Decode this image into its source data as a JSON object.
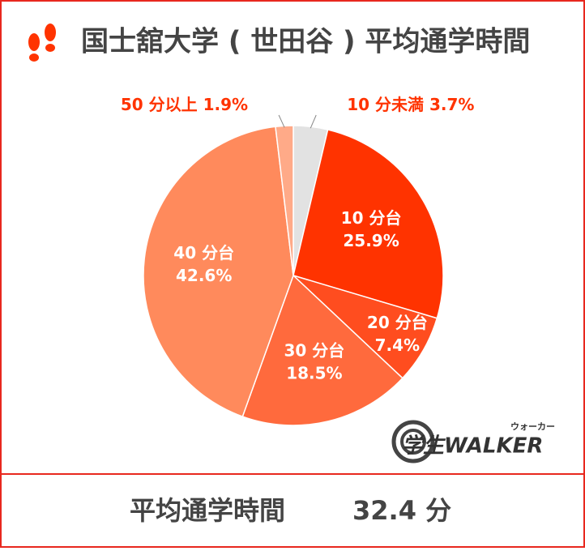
{
  "chart_data": {
    "type": "pie",
    "title": "国士舘大学 ( 世田谷 ) 平均通学時間",
    "categories": [
      "10 分未満",
      "10 分台",
      "20 分台",
      "30 分台",
      "40 分台",
      "50 分以上"
    ],
    "values": [
      3.7,
      25.9,
      7.4,
      18.5,
      42.6,
      1.9
    ],
    "value_labels": [
      "3.7%",
      "25.9%",
      "7.4%",
      "18.5%",
      "42.6%",
      "1.9%"
    ],
    "colors": [
      "#e2e2e2",
      "#ff3300",
      "#ff4d1f",
      "#ff6a3d",
      "#ff8a5c",
      "#ffaa88"
    ]
  },
  "footer": {
    "label": "平均通学時間",
    "value": "32.4 分"
  },
  "logo": {
    "text": "学生WALKER",
    "ruby": "ウォーカー"
  }
}
